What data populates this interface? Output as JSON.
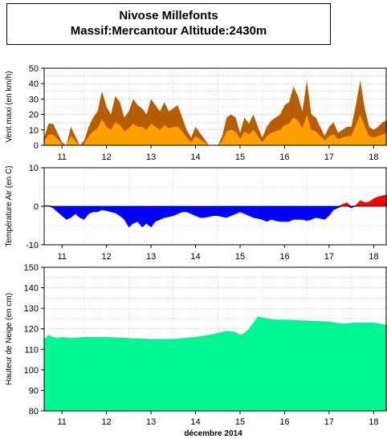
{
  "title": {
    "line1": "Nivose Millefonts",
    "line2": "Massif:Mercantour Altitude:2430m"
  },
  "colors": {
    "wind_max": "#b85c00",
    "wind_mean": "#ffa000",
    "temp_negative": "#0000ff",
    "temp_positive": "#ff0000",
    "snow": "#00f593"
  },
  "chart_data": [
    {
      "type": "area",
      "name": "wind",
      "ylabel": "Vent maxi (en km/h)",
      "xlabel": "",
      "ylim": [
        0,
        50
      ],
      "yticks": [
        0,
        10,
        20,
        30,
        40,
        50
      ],
      "xlim": [
        10.6,
        18.3
      ],
      "xticks": [
        11,
        12,
        13,
        14,
        15,
        16,
        17,
        18
      ],
      "grid": true,
      "series": [
        {
          "role": "maximum",
          "x": [
            10.6,
            10.7,
            10.8,
            10.9,
            11.0,
            11.1,
            11.2,
            11.3,
            11.4,
            11.5,
            11.6,
            11.7,
            11.8,
            11.9,
            12.0,
            12.1,
            12.2,
            12.3,
            12.4,
            12.5,
            12.6,
            12.7,
            12.8,
            12.9,
            13.0,
            13.1,
            13.2,
            13.3,
            13.4,
            13.5,
            13.6,
            13.7,
            13.8,
            13.9,
            14.0,
            14.1,
            14.2,
            14.3,
            14.4,
            14.5,
            14.6,
            14.7,
            14.8,
            14.9,
            15.0,
            15.1,
            15.2,
            15.3,
            15.4,
            15.5,
            15.6,
            15.7,
            15.8,
            15.9,
            16.0,
            16.1,
            16.2,
            16.3,
            16.4,
            16.5,
            16.6,
            16.7,
            16.8,
            16.9,
            17.0,
            17.1,
            17.2,
            17.3,
            17.4,
            17.5,
            17.6,
            17.7,
            17.8,
            17.9,
            18.0,
            18.1,
            18.2,
            18.3
          ],
          "values": [
            5,
            14,
            14,
            8,
            2,
            0,
            12,
            6,
            0,
            3,
            12,
            18,
            22,
            35,
            25,
            20,
            32,
            28,
            18,
            22,
            30,
            26,
            24,
            20,
            30,
            26,
            22,
            28,
            22,
            24,
            26,
            18,
            10,
            5,
            12,
            8,
            4,
            0,
            0,
            0,
            6,
            18,
            20,
            18,
            8,
            18,
            14,
            20,
            12,
            5,
            12,
            16,
            18,
            20,
            26,
            28,
            38,
            32,
            22,
            42,
            20,
            18,
            12,
            6,
            12,
            15,
            8,
            10,
            12,
            12,
            26,
            42,
            24,
            12,
            10,
            12,
            15,
            16
          ]
        },
        {
          "role": "mean",
          "x": [
            10.6,
            10.7,
            10.8,
            10.9,
            11.0,
            11.1,
            11.2,
            11.3,
            11.4,
            11.5,
            11.6,
            11.7,
            11.8,
            11.9,
            12.0,
            12.1,
            12.2,
            12.3,
            12.4,
            12.5,
            12.6,
            12.7,
            12.8,
            12.9,
            13.0,
            13.1,
            13.2,
            13.3,
            13.4,
            13.5,
            13.6,
            13.7,
            13.8,
            13.9,
            14.0,
            14.1,
            14.2,
            14.3,
            14.4,
            14.5,
            14.6,
            14.7,
            14.8,
            14.9,
            15.0,
            15.1,
            15.2,
            15.3,
            15.4,
            15.5,
            15.6,
            15.7,
            15.8,
            15.9,
            16.0,
            16.1,
            16.2,
            16.3,
            16.4,
            16.5,
            16.6,
            16.7,
            16.8,
            16.9,
            17.0,
            17.1,
            17.2,
            17.3,
            17.4,
            17.5,
            17.6,
            17.7,
            17.8,
            17.9,
            18.0,
            18.1,
            18.2,
            18.3
          ],
          "values": [
            3,
            7,
            7,
            4,
            1,
            0,
            6,
            3,
            0,
            1,
            6,
            9,
            11,
            17,
            12,
            10,
            15,
            13,
            9,
            11,
            14,
            12,
            12,
            10,
            14,
            12,
            10,
            13,
            11,
            12,
            12,
            9,
            5,
            2,
            6,
            4,
            2,
            0,
            0,
            0,
            3,
            9,
            10,
            9,
            4,
            9,
            7,
            10,
            6,
            2,
            6,
            8,
            9,
            10,
            13,
            14,
            18,
            16,
            11,
            20,
            10,
            9,
            6,
            3,
            6,
            7,
            4,
            5,
            6,
            6,
            13,
            20,
            12,
            6,
            5,
            6,
            7,
            8
          ]
        }
      ]
    },
    {
      "type": "area",
      "name": "temperature",
      "ylabel": "Température Air (en C)",
      "xlabel": "",
      "ylim": [
        -10,
        10
      ],
      "yticks": [
        -10,
        0,
        10
      ],
      "xlim": [
        10.6,
        18.3
      ],
      "xticks": [
        11,
        12,
        13,
        14,
        15,
        16,
        17,
        18
      ],
      "grid": true,
      "series": [
        {
          "role": "air_temperature",
          "x": [
            10.6,
            10.7,
            10.8,
            10.9,
            11.0,
            11.1,
            11.2,
            11.3,
            11.4,
            11.5,
            11.6,
            11.7,
            11.8,
            11.9,
            12.0,
            12.1,
            12.2,
            12.3,
            12.4,
            12.5,
            12.6,
            12.7,
            12.8,
            12.9,
            13.0,
            13.1,
            13.2,
            13.3,
            13.4,
            13.5,
            13.6,
            13.7,
            13.8,
            13.9,
            14.0,
            14.1,
            14.2,
            14.3,
            14.4,
            14.5,
            14.6,
            14.7,
            14.8,
            14.9,
            15.0,
            15.1,
            15.2,
            15.3,
            15.4,
            15.5,
            15.6,
            15.7,
            15.8,
            15.9,
            16.0,
            16.1,
            16.2,
            16.3,
            16.4,
            16.5,
            16.6,
            16.7,
            16.8,
            16.9,
            17.0,
            17.1,
            17.2,
            17.3,
            17.4,
            17.5,
            17.6,
            17.7,
            17.8,
            17.9,
            18.0,
            18.1,
            18.2,
            18.3
          ],
          "values": [
            0.2,
            0.3,
            -0.5,
            -1.5,
            -2.5,
            -3.5,
            -3,
            -2,
            -3,
            -3.5,
            -2,
            -1.5,
            -1.5,
            -1,
            -1.2,
            -1.5,
            -1.8,
            -2.5,
            -3.5,
            -5.5,
            -4.5,
            -4,
            -5.5,
            -4.5,
            -5.5,
            -4,
            -3.5,
            -3,
            -2.8,
            -2.5,
            -2,
            -1.5,
            -1.5,
            -2,
            -2.5,
            -3,
            -3,
            -2.8,
            -2.5,
            -2.5,
            -2.8,
            -3,
            -2.5,
            -2,
            -1.5,
            -2,
            -2.5,
            -3,
            -3.2,
            -3.5,
            -4,
            -3.5,
            -3.8,
            -4,
            -4,
            -4,
            -3.5,
            -3.5,
            -3.5,
            -3.8,
            -3.5,
            -3,
            -3.2,
            -3.5,
            -2.5,
            -1,
            -0.5,
            0.5,
            1,
            -0.5,
            0.3,
            1.5,
            1,
            1.2,
            2,
            2.5,
            2.8,
            3
          ]
        }
      ]
    },
    {
      "type": "area",
      "name": "snow_depth",
      "ylabel": "Hauteur de Neige (en cm)",
      "xlabel": "décembre 2014",
      "ylim": [
        80,
        150
      ],
      "yticks": [
        80,
        90,
        100,
        110,
        120,
        130,
        140,
        150
      ],
      "xlim": [
        10.6,
        18.3
      ],
      "xticks": [
        11,
        12,
        13,
        14,
        15,
        16,
        17,
        18
      ],
      "grid": true,
      "series": [
        {
          "role": "snow_depth",
          "x": [
            10.6,
            10.7,
            10.8,
            10.9,
            11.0,
            11.2,
            11.5,
            12.0,
            12.5,
            13.0,
            13.5,
            14.0,
            14.3,
            14.5,
            14.7,
            14.9,
            15.0,
            15.1,
            15.2,
            15.3,
            15.4,
            15.5,
            15.6,
            15.8,
            16.0,
            16.5,
            17.0,
            17.3,
            17.6,
            18.0,
            18.3
          ],
          "values": [
            115,
            117,
            116,
            115.5,
            116,
            115.5,
            116,
            116,
            115.5,
            115,
            115,
            116,
            117,
            118,
            119,
            118.5,
            117,
            118,
            120,
            123,
            126,
            125.5,
            125,
            124.5,
            124.5,
            124,
            123.5,
            122.5,
            123,
            123,
            122
          ]
        }
      ]
    }
  ]
}
